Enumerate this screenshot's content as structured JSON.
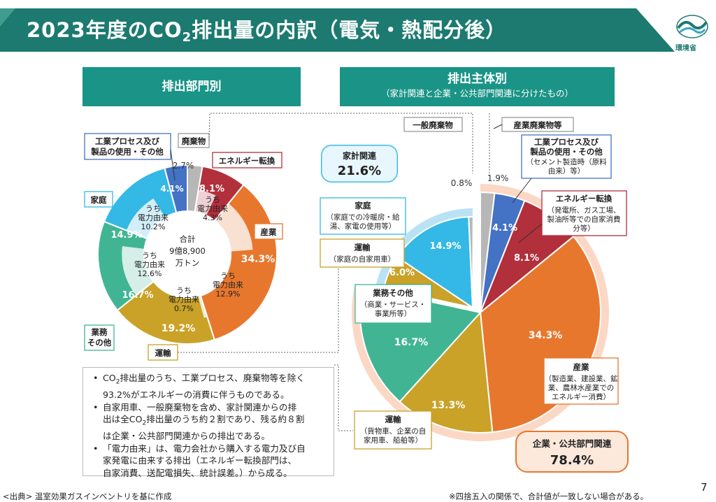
{
  "header": {
    "title_main": "2023年度のCO",
    "title_sub": "2",
    "title_rest": "排出量の内訳（電気・熱配分後）",
    "logo_text": "環境省",
    "page_number": "7"
  },
  "left_section": {
    "header": "排出部門別",
    "center_label": [
      "合計",
      "9億8,900",
      "万トン"
    ],
    "callouts": {
      "industrial_process": [
        "工業プロセス及び",
        "製品の使用・その他"
      ],
      "waste": "廃棄物",
      "energy": "エネルギー転換",
      "household": "家庭",
      "industry": "産業",
      "commercial": [
        "業務",
        "その他"
      ],
      "transport": "運輸"
    }
  },
  "right_section": {
    "header": "排出主体別",
    "subheader": "（家計関連と企業・公共部門関連に分けたもの）",
    "household_total": {
      "label": "家計関連",
      "value": "21.6%"
    },
    "corporate_total": {
      "label": "企業・公共部門関連",
      "value": "78.4%"
    },
    "callouts": {
      "general_waste": "一般廃棄物",
      "industrial_waste": "産業廃棄物等",
      "industrial_process": {
        "title": [
          "工業プロセス及び",
          "製品の使用・その他"
        ],
        "detail": [
          "（セメント製造時（原料",
          "由来）等）"
        ]
      },
      "energy": {
        "title": "エネルギー転換",
        "detail": [
          "（発電所、ガス工場、",
          "製油所等での自家消費",
          "分等）"
        ]
      },
      "household": {
        "title": "家庭",
        "detail": [
          "（家庭での冷暖房・給",
          "湯、家電の使用等）"
        ]
      },
      "home_transport": {
        "title": "運輸",
        "detail": [
          "（家庭の自家用車）"
        ]
      },
      "commercial": {
        "title": "業務その他",
        "detail": [
          "（商業・サービス・",
          "事業所等）"
        ]
      },
      "industry": {
        "title": "産業",
        "detail": [
          "（製造業、建設業、鉱",
          "業、農林水産業での",
          "エネルギー消費）"
        ]
      },
      "freight": {
        "title": "運輸",
        "detail": [
          "（貨物車、企業の自",
          "家用車、船舶等）"
        ]
      }
    }
  },
  "notes": [
    [
      "CO",
      "2",
      "排出量のうち、工業プロセス、廃棄物等を除く"
    ],
    [
      "93.2%がエネルギーの消費に伴うものである。"
    ],
    [
      "自家用車、一般廃棄物を含め、家計関連からの排"
    ],
    [
      "出は全CO",
      "2",
      "排出量のうち約２割であり、残る約８割"
    ],
    [
      "は企業・公共部門関連からの排出である。"
    ],
    [
      "「電力由来」は、電力会社から購入する電力及び自"
    ],
    [
      "家発電に由来する排出（エネルギー転換部門は、"
    ],
    [
      "自家消費、送配電損失、統計誤差。）から成る。"
    ]
  ],
  "source": "<出典> 温室効果ガスインベントリを基に作成",
  "footnote": "※四捨五入の関係で、合計値が一致しない場合がある。",
  "colors": {
    "teal_header": "#1a9486",
    "title_bar": "#1c7a70",
    "waste": "#b7b7b7",
    "energy": "#b22f3c",
    "industry": "#e8772e",
    "transport": "#c9a227",
    "commercial": "#41b593",
    "household": "#34b8e6",
    "industrial_process": "#4472c4",
    "household_light": "#b9e3f4",
    "corporate_light": "#fbd8c5"
  },
  "chart_data": [
    {
      "type": "pie",
      "title": "排出部門別",
      "center_text": "合計 9億8,900 万トン",
      "total": "9億8,900万トン",
      "slices": [
        {
          "name": "廃棄物",
          "value": 2.7,
          "color": "#b7b7b7"
        },
        {
          "name": "エネルギー転換",
          "value": 8.1,
          "color": "#b22f3c"
        },
        {
          "name": "産業",
          "value": 34.3,
          "color": "#e8772e"
        },
        {
          "name": "運輸",
          "value": 19.2,
          "color": "#c9a227"
        },
        {
          "name": "業務その他",
          "value": 16.7,
          "color": "#41b593"
        },
        {
          "name": "家庭",
          "value": 14.9,
          "color": "#34b8e6"
        },
        {
          "name": "工業プロセス及び製品の使用・その他",
          "value": 4.1,
          "color": "#4472c4"
        }
      ],
      "inner_ring": [
        {
          "name": "エネルギー転換 うち電力由来",
          "value": 4.3,
          "label": [
            "うち",
            "電力由来",
            "4.3%"
          ],
          "parent": "エネルギー転換"
        },
        {
          "name": "産業 うち電力由来",
          "value": 12.9,
          "label": [
            "うち",
            "電力由来",
            "12.9%"
          ],
          "parent": "産業"
        },
        {
          "name": "運輸 うち電力由来",
          "value": 0.7,
          "label": [
            "うち",
            "電力由来",
            "0.7%"
          ],
          "parent": "運輸"
        },
        {
          "name": "業務その他 うち電力由来",
          "value": 12.6,
          "label": [
            "うち",
            "電力由来",
            "12.6%"
          ],
          "parent": "業務その他"
        },
        {
          "name": "家庭 うち電力由来",
          "value": 10.2,
          "label": [
            "うち",
            "電力由来",
            "10.2%"
          ],
          "parent": "家庭"
        }
      ]
    },
    {
      "type": "pie",
      "title": "排出主体別",
      "groups": [
        {
          "name": "家計関連",
          "value": 21.6
        },
        {
          "name": "企業・公共部門関連",
          "value": 78.4
        }
      ],
      "slices": [
        {
          "name": "産業廃棄物等",
          "value": 1.9,
          "group": "企業・公共部門関連",
          "color": "#b7b7b7"
        },
        {
          "name": "工業プロセス及び製品の使用・その他",
          "value": 4.1,
          "group": "企業・公共部門関連",
          "color": "#4472c4"
        },
        {
          "name": "エネルギー転換",
          "value": 8.1,
          "group": "企業・公共部門関連",
          "color": "#b22f3c"
        },
        {
          "name": "産業",
          "value": 34.3,
          "group": "企業・公共部門関連",
          "color": "#e8772e"
        },
        {
          "name": "運輸（貨物車、企業の自家用車、船舶等）",
          "value": 13.3,
          "group": "企業・公共部門関連",
          "color": "#c9a227"
        },
        {
          "name": "業務その他",
          "value": 16.7,
          "group": "企業・公共部門関連",
          "color": "#41b593"
        },
        {
          "name": "運輸（家庭の自家用車）",
          "value": 6.0,
          "group": "家計関連",
          "color": "#c9a227"
        },
        {
          "name": "家庭",
          "value": 14.9,
          "group": "家計関連",
          "color": "#34b8e6"
        },
        {
          "name": "一般廃棄物",
          "value": 0.8,
          "group": "家計関連",
          "color": "#b7b7b7"
        }
      ]
    }
  ]
}
